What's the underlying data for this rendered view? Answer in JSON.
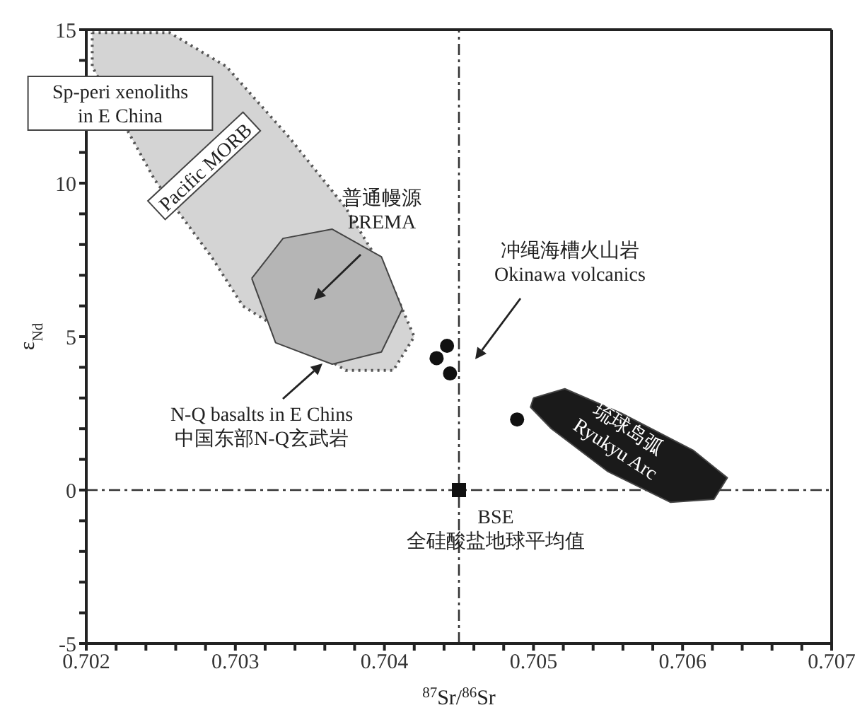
{
  "chart_data": {
    "type": "scatter",
    "xlabel": "$^{87}$Sr/$^{86}$Sr",
    "ylabel": "ε$_{Nd}$",
    "xlim": [
      0.702,
      0.707
    ],
    "ylim": [
      -5,
      15
    ],
    "xticks": [
      0.702,
      {
        "value": 0.7022,
        "label": null
      },
      {
        "value": 0.7024,
        "label": null
      },
      {
        "value": 0.7026,
        "label": null
      },
      {
        "value": 0.7028,
        "label": null
      },
      0.703,
      {
        "value": 0.7032,
        "label": null
      },
      {
        "value": 0.7034,
        "label": null
      },
      {
        "value": 0.7036,
        "label": null
      },
      {
        "value": 0.7038,
        "label": null
      },
      0.704,
      {
        "value": 0.7042,
        "label": null
      },
      {
        "value": 0.7044,
        "label": null
      },
      {
        "value": 0.7046,
        "label": null
      },
      {
        "value": 0.7048,
        "label": null
      },
      0.705,
      {
        "value": 0.7052,
        "label": null
      },
      {
        "value": 0.7054,
        "label": null
      },
      {
        "value": 0.7056,
        "label": null
      },
      {
        "value": 0.7058,
        "label": null
      },
      0.706,
      {
        "value": 0.7062,
        "label": null
      },
      {
        "value": 0.7064,
        "label": null
      },
      {
        "value": 0.7066,
        "label": null
      },
      {
        "value": 0.7068,
        "label": null
      },
      0.707
    ],
    "yticks": [
      -5,
      {
        "value": -4,
        "label": null
      },
      {
        "value": -3,
        "label": null
      },
      {
        "value": -2,
        "label": null
      },
      {
        "value": -1,
        "label": null
      },
      0,
      {
        "value": 1,
        "label": null
      },
      {
        "value": 2,
        "label": null
      },
      {
        "value": 3,
        "label": null
      },
      {
        "value": 4,
        "label": null
      },
      5,
      {
        "value": 6,
        "label": null
      },
      {
        "value": 7,
        "label": null
      },
      {
        "value": 8,
        "label": null
      },
      {
        "value": 9,
        "label": null
      },
      10,
      {
        "value": 11,
        "label": null
      },
      {
        "value": 12,
        "label": null
      },
      {
        "value": 13,
        "label": null
      },
      {
        "value": 14,
        "label": null
      },
      15
    ],
    "grid": false,
    "legend": false,
    "series": [
      {
        "type": "area",
        "color": "#d4d4d4",
        "line_style": "dotted",
        "x": [
          0.70204,
          0.70256,
          0.70294,
          0.70336,
          0.70374,
          0.70403,
          0.7042,
          0.70406,
          0.70374,
          0.70305,
          0.70284,
          0.70246,
          0.70204,
          0.70204
        ],
        "values": [
          14.9,
          14.9,
          13.8,
          11.5,
          9.2,
          6.9,
          5.0,
          3.9,
          3.9,
          6.0,
          7.6,
          10.1,
          13.8,
          14.9
        ]
      },
      {
        "type": "area",
        "color": "#b5b5b5",
        "x": [
          0.70311,
          0.70332,
          0.70365,
          0.70398,
          0.70412,
          0.70398,
          0.70365,
          0.70327,
          0.70311
        ],
        "values": [
          6.9,
          8.2,
          8.5,
          7.6,
          5.9,
          4.5,
          4.1,
          4.8,
          6.9
        ]
      },
      {
        "type": "area",
        "color": "#1a1a1a",
        "x": [
          0.705,
          0.70521,
          0.70559,
          0.70607,
          0.7063,
          0.70621,
          0.70592,
          0.7055,
          0.70512,
          0.70498,
          0.705
        ],
        "values": [
          3.0,
          3.3,
          2.5,
          1.3,
          0.4,
          -0.3,
          -0.4,
          0.6,
          2.0,
          2.7,
          3.0
        ]
      },
      {
        "color": "#111111",
        "marker": "circle",
        "x": [
          0.70442,
          0.70435,
          0.70444,
          0.70489
        ],
        "values": [
          4.7,
          4.3,
          3.8,
          2.3
        ]
      },
      {
        "color": "#111111",
        "marker": "square",
        "x": [
          0.7045
        ],
        "values": [
          0
        ]
      }
    ],
    "ref_lines": [
      {
        "axis": "x",
        "value": 0.7045,
        "line_style": "dashdot"
      },
      {
        "axis": "y",
        "value": 0,
        "line_style": "dashdot"
      }
    ],
    "annotations": [
      "Sp-peri xenoliths\nin E China",
      "Pacific MORB",
      "普通幔源\nPREMA",
      "冲绳海槽火山岩\nOkinawa volcanics",
      "N-Q basalts in E Chins\n中国东部N-Q玄武岩",
      "琉球岛弧\nRyukyu Arc",
      {
        "text": "BSE\n全硅酸盐地球平均值",
        "x": 0.7045,
        "y": 0
      }
    ]
  }
}
